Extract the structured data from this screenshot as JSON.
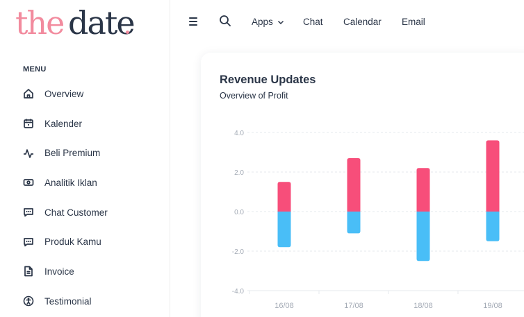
{
  "brand": {
    "word1": "the",
    "word2": "date",
    "accent": "#f28b9e"
  },
  "sidebar": {
    "menu_title": "MENU",
    "items": [
      {
        "label": "Overview",
        "icon": "home-icon"
      },
      {
        "label": "Kalender",
        "icon": "calendar-icon"
      },
      {
        "label": "Beli Premium",
        "icon": "activity-icon"
      },
      {
        "label": "Analitik Iklan",
        "icon": "cash-icon"
      },
      {
        "label": "Chat Customer",
        "icon": "message-icon"
      },
      {
        "label": "Produk Kamu",
        "icon": "message-icon"
      },
      {
        "label": "Invoice",
        "icon": "file-icon"
      },
      {
        "label": "Testimonial",
        "icon": "accessibility-icon"
      }
    ]
  },
  "topbar": {
    "menu_icon": "hamburger-icon",
    "search_icon": "search-icon",
    "apps_label": "Apps",
    "chat_label": "Chat",
    "calendar_label": "Calendar",
    "email_label": "Email"
  },
  "card": {
    "title": "Revenue Updates",
    "subtitle": "Overview of Profit"
  },
  "chart_data": {
    "type": "bar",
    "stacked": true,
    "categories": [
      "16/08",
      "17/08",
      "18/08",
      "19/08"
    ],
    "series": [
      {
        "values": [
          1.5,
          2.7,
          2.2,
          3.6
        ],
        "color": "#f74e7a"
      },
      {
        "values": [
          -1.8,
          -1.1,
          -2.5,
          -1.5
        ],
        "color": "#49bef7"
      }
    ],
    "ylim": [
      -4,
      4
    ],
    "yticks": [
      "4.0",
      "2.0",
      "0.0",
      "-2.0",
      "-4.0"
    ],
    "ytick_values": [
      4,
      2,
      0,
      -2,
      -4
    ],
    "grid": true
  }
}
